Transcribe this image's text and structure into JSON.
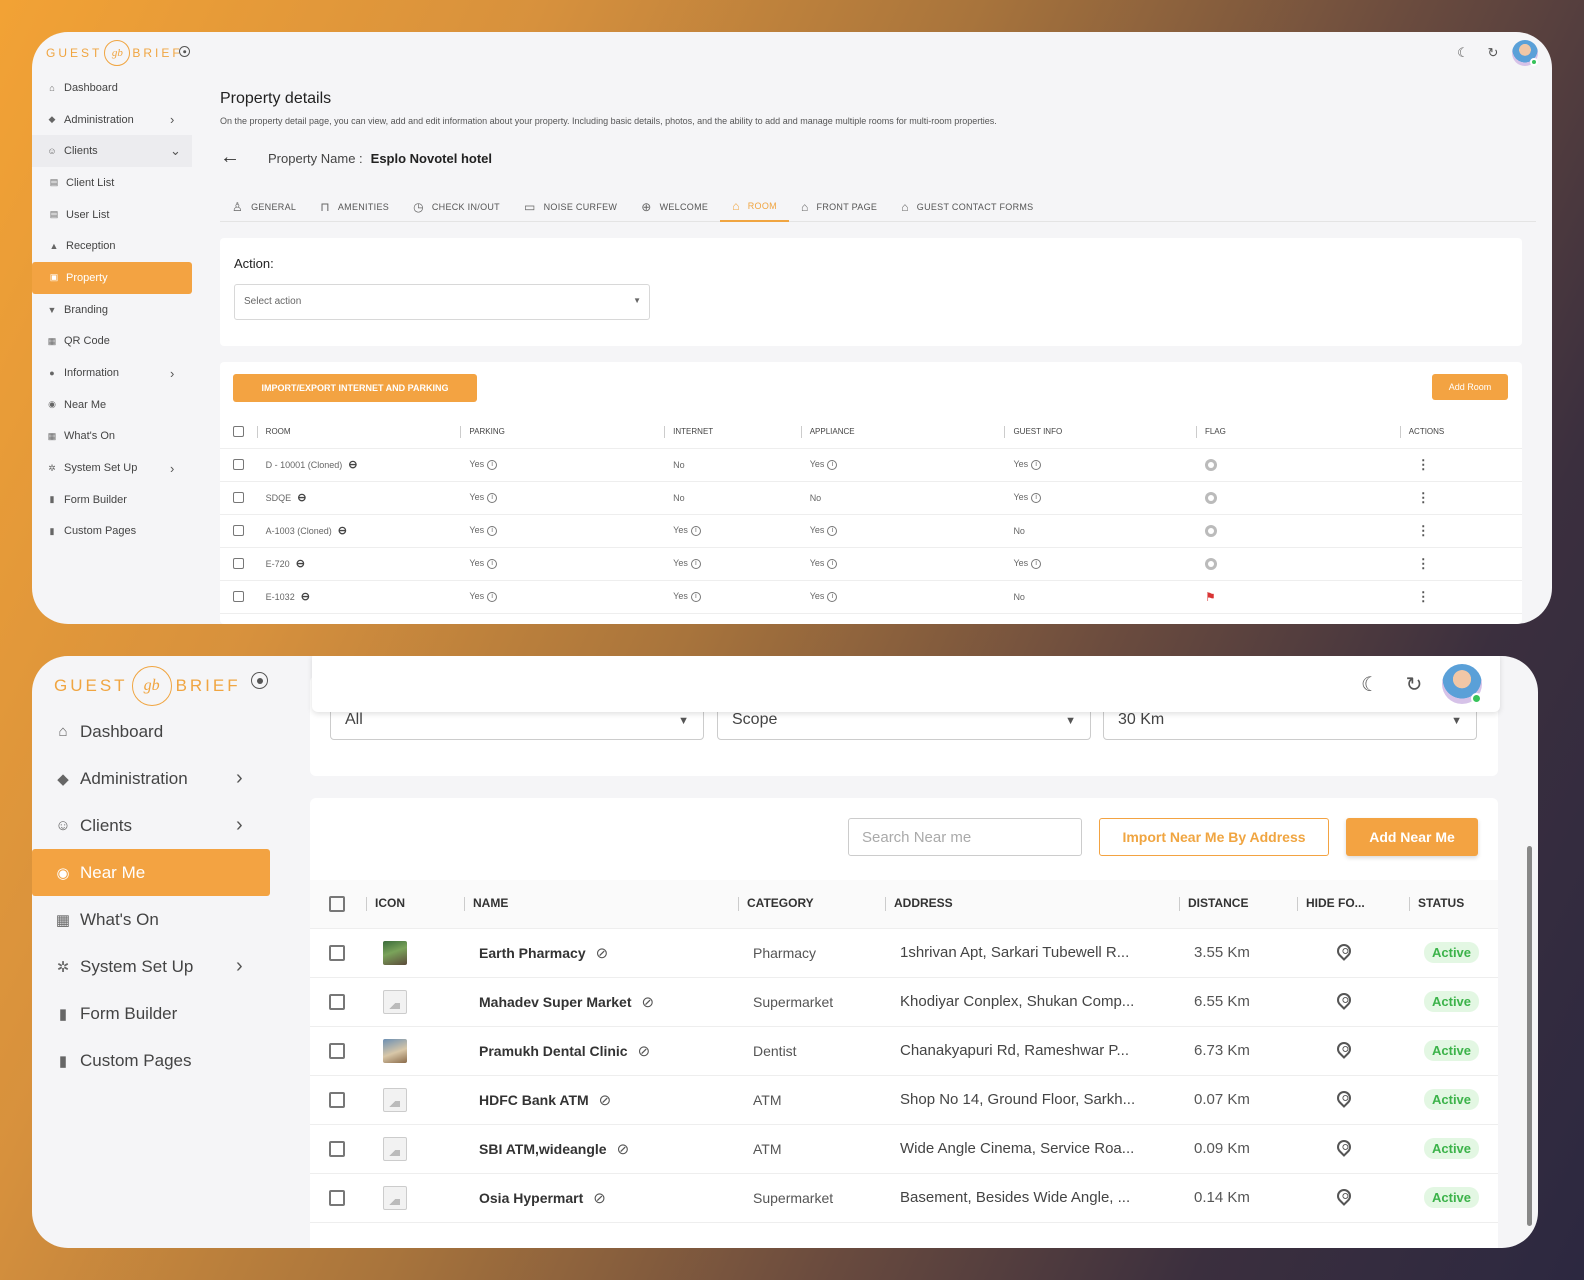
{
  "brand": {
    "left": "GUEST",
    "right": "BRIEF",
    "mark": "gb"
  },
  "panel1": {
    "nav": [
      {
        "label": "Dashboard",
        "icon": "home-icon",
        "glyph": "⌂"
      },
      {
        "label": "Administration",
        "icon": "shield-icon",
        "glyph": "◆",
        "chev": "›"
      },
      {
        "label": "Clients",
        "icon": "users-icon",
        "glyph": "☺",
        "chev": "⌄",
        "expanded": true
      },
      {
        "label": "Client List",
        "icon": "list-icon",
        "glyph": "▤",
        "sub": true
      },
      {
        "label": "User List",
        "icon": "list-icon",
        "glyph": "▤",
        "sub": true
      },
      {
        "label": "Reception",
        "icon": "bell-icon",
        "glyph": "▲",
        "sub": true
      },
      {
        "label": "Property",
        "icon": "building-icon",
        "glyph": "▣",
        "sub": true,
        "active": true
      },
      {
        "label": "Branding",
        "icon": "brush-icon",
        "glyph": "▼"
      },
      {
        "label": "QR Code",
        "icon": "qr-icon",
        "glyph": "▦"
      },
      {
        "label": "Information",
        "icon": "info-icon",
        "glyph": "●",
        "chev": "›"
      },
      {
        "label": "Near Me",
        "icon": "location-icon",
        "glyph": "◉"
      },
      {
        "label": "What's On",
        "icon": "calendar-icon",
        "glyph": "▦"
      },
      {
        "label": "System Set Up",
        "icon": "gears-icon",
        "glyph": "✲",
        "chev": "›"
      },
      {
        "label": "Form Builder",
        "icon": "form-icon",
        "glyph": "▮"
      },
      {
        "label": "Custom Pages",
        "icon": "page-icon",
        "glyph": "▮"
      }
    ],
    "title": "Property details",
    "description": "On the property detail page, you can view, add and edit information about your property. Including basic details, photos, and the ability to add and manage multiple rooms for multi-room properties.",
    "property_label": "Property Name :",
    "property_name": "Esplo Novotel hotel",
    "tabs": [
      {
        "label": "GENERAL",
        "icon": "user-icon",
        "glyph": "♙"
      },
      {
        "label": "AMENITIES",
        "icon": "bookmark-icon",
        "glyph": "⊓"
      },
      {
        "label": "CHECK IN/OUT",
        "icon": "clock-icon",
        "glyph": "◷"
      },
      {
        "label": "NOISE CURFEW",
        "icon": "battery-icon",
        "glyph": "▭"
      },
      {
        "label": "WELCOME",
        "icon": "globe-icon",
        "glyph": "⊕"
      },
      {
        "label": "ROOM",
        "icon": "home-icon",
        "glyph": "⌂",
        "active": true
      },
      {
        "label": "FRONT PAGE",
        "icon": "home-icon",
        "glyph": "⌂"
      },
      {
        "label": "GUEST CONTACT FORMS",
        "icon": "home-icon",
        "glyph": "⌂"
      }
    ],
    "action_label": "Action:",
    "action_placeholder": "Select action",
    "import_button": "IMPORT/EXPORT INTERNET AND PARKING",
    "add_room_button": "Add Room",
    "columns": [
      "ROOM",
      "PARKING",
      "INTERNET",
      "APPLIANCE",
      "GUEST INFO",
      "FLAG",
      "ACTIONS"
    ],
    "rows": [
      {
        "room": "D - 10001 (Cloned)",
        "parking": "Yes",
        "internet": "No",
        "appliance": "Yes",
        "guest_info": "Yes",
        "flag": "none"
      },
      {
        "room": "SDQE",
        "parking": "Yes",
        "internet": "No",
        "appliance": "No",
        "guest_info": "Yes",
        "flag": "none"
      },
      {
        "room": "A-1003 (Cloned)",
        "parking": "Yes",
        "internet": "Yes",
        "appliance": "Yes",
        "guest_info": "No",
        "flag": "none"
      },
      {
        "room": "E-720",
        "parking": "Yes",
        "internet": "Yes",
        "appliance": "Yes",
        "guest_info": "Yes",
        "flag": "none"
      },
      {
        "room": "E-1032",
        "parking": "Yes",
        "internet": "Yes",
        "appliance": "Yes",
        "guest_info": "No",
        "flag": "red"
      }
    ]
  },
  "panel2": {
    "nav": [
      {
        "label": "Dashboard",
        "icon": "home-icon",
        "glyph": "⌂"
      },
      {
        "label": "Administration",
        "icon": "shield-icon",
        "glyph": "◆",
        "chev": "›"
      },
      {
        "label": "Clients",
        "icon": "users-icon",
        "glyph": "☺",
        "chev": "›"
      },
      {
        "label": "Near Me",
        "icon": "location-icon",
        "glyph": "◉",
        "active": true
      },
      {
        "label": "What's On",
        "icon": "calendar-icon",
        "glyph": "▦"
      },
      {
        "label": "System Set Up",
        "icon": "gears-icon",
        "glyph": "✲",
        "chev": "›"
      },
      {
        "label": "Form Builder",
        "icon": "form-icon",
        "glyph": "▮"
      },
      {
        "label": "Custom Pages",
        "icon": "page-icon",
        "glyph": "▮"
      }
    ],
    "filters": [
      {
        "value": "All"
      },
      {
        "value": "Scope"
      },
      {
        "value": "30 Km"
      }
    ],
    "search_placeholder": "Search Near me",
    "import_button": "Import Near Me By Address",
    "add_button": "Add Near Me",
    "columns": [
      "ICON",
      "NAME",
      "CATEGORY",
      "ADDRESS",
      "DISTANCE",
      "HIDE FO...",
      "STATUS"
    ],
    "rows": [
      {
        "icon": "photo",
        "name": "Earth Pharmacy",
        "category": "Pharmacy",
        "address": "1shrivan Apt, Sarkari Tubewell R...",
        "distance": "3.55 Km",
        "status": "Active"
      },
      {
        "icon": "placeholder",
        "name": "Mahadev Super Market",
        "category": "Supermarket",
        "address": "Khodiyar Conplex, Shukan Comp...",
        "distance": "6.55 Km",
        "status": "Active"
      },
      {
        "icon": "photo",
        "name": "Pramukh Dental Clinic",
        "category": "Dentist",
        "address": "Chanakyapuri Rd, Rameshwar P...",
        "distance": "6.73 Km",
        "status": "Active"
      },
      {
        "icon": "placeholder",
        "name": "HDFC Bank ATM",
        "category": "ATM",
        "address": "Shop No 14, Ground Floor, Sarkh...",
        "distance": "0.07 Km",
        "status": "Active"
      },
      {
        "icon": "placeholder",
        "name": "SBI ATM,wideangle",
        "category": "ATM",
        "address": "Wide Angle Cinema, Service Roa...",
        "distance": "0.09 Km",
        "status": "Active"
      },
      {
        "icon": "placeholder",
        "name": "Osia Hypermart",
        "category": "Supermarket",
        "address": "Basement, Besides Wide Angle, ...",
        "distance": "0.14 Km",
        "status": "Active"
      }
    ]
  },
  "colors": {
    "accent": "#f3a342",
    "active_badge_bg": "#e3f7e3",
    "active_badge_text": "#3cb34a",
    "flag_red": "#d93434"
  },
  "top_icons": [
    "moon-icon",
    "refresh-icon",
    "avatar"
  ]
}
